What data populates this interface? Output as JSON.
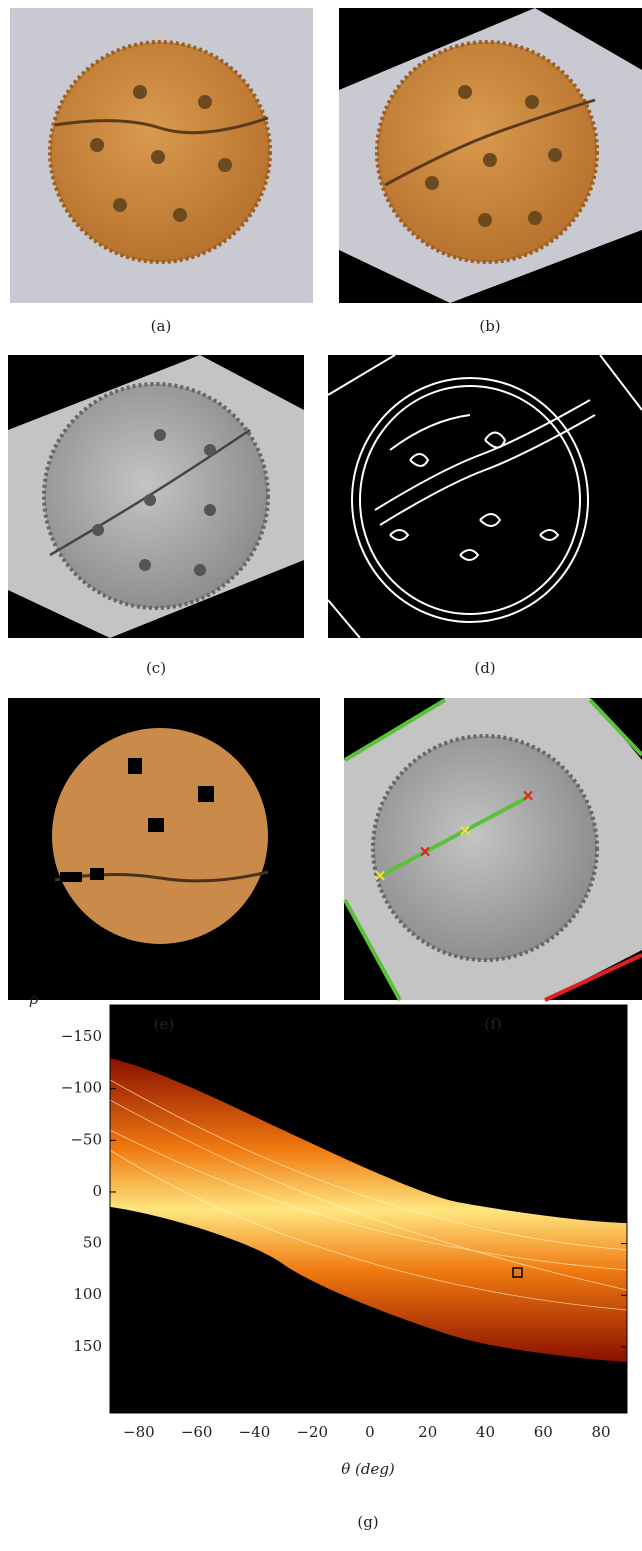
{
  "panels": {
    "a": "(a)",
    "b": "(b)",
    "c": "(c)",
    "d": "(d)",
    "e": "(e)",
    "f": "(f)",
    "g": "(g)"
  },
  "chart_data": {
    "type": "heatmap",
    "x_label": "θ (deg)",
    "y_label": "ρ",
    "xlim": [
      -90,
      89
    ],
    "ylim": [
      -181,
      214
    ],
    "y_inverted": true,
    "xticks": [
      {
        "value": -80,
        "label": "−80"
      },
      {
        "value": -60,
        "label": "−60"
      },
      {
        "value": -40,
        "label": "−40"
      },
      {
        "value": -20,
        "label": "−20"
      },
      0,
      20,
      40,
      60,
      80
    ],
    "yticks": [
      {
        "value": -150,
        "label": "−150"
      },
      {
        "value": -100,
        "label": "−100"
      },
      {
        "value": -50,
        "label": "−50"
      },
      0,
      50,
      100,
      150
    ]
  }
}
